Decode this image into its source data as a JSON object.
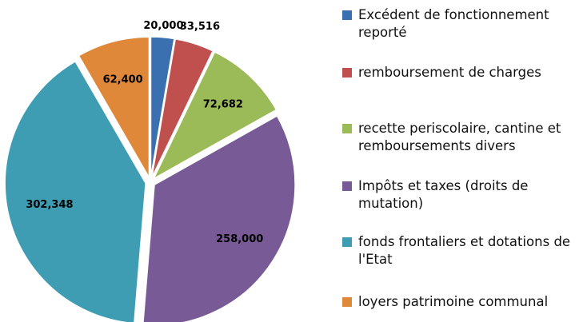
{
  "chart_data": {
    "type": "pie",
    "categories": [
      "Excédent de fonctionnement reporté",
      "remboursement de charges",
      "recette periscolaire, cantine et remboursements divers",
      "Impôts et taxes (droits de mutation)",
      "fonds frontaliers et dotations de l'Etat",
      "loyers patrimoine communal"
    ],
    "values": [
      20000,
      33516,
      72682,
      258000,
      302348,
      62400
    ],
    "value_labels": [
      "20,000",
      "33,516",
      "72,682",
      "258,000",
      "302,348",
      "62,400"
    ],
    "colors": [
      "#3a6fb0",
      "#c0504d",
      "#9bbb59",
      "#775a96",
      "#3f9db3",
      "#e0883a"
    ],
    "legend": "right"
  }
}
